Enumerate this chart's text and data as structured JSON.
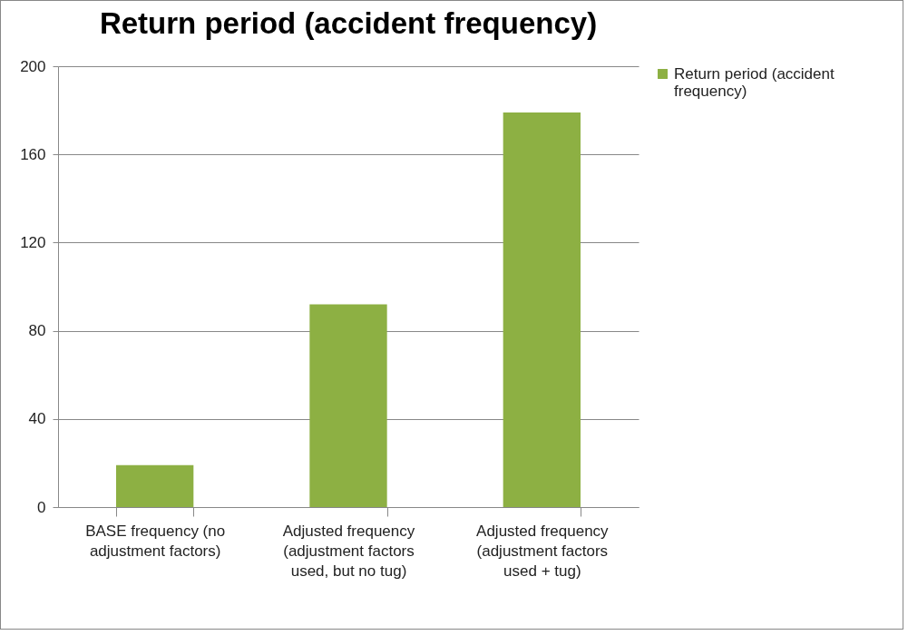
{
  "chart_data": {
    "type": "bar",
    "title": "Return period (accident frequency)",
    "categories": [
      "BASE frequency (no adjustment factors)",
      "Adjusted frequency (adjustment factors used, but no tug)",
      "Adjusted frequency (adjustment factors used + tug)"
    ],
    "series": [
      {
        "name": "Return period (accident frequency)",
        "color": "#8db043",
        "values": [
          19,
          92,
          179
        ]
      }
    ],
    "ylim": [
      0,
      200
    ],
    "yticks": [
      0,
      40,
      80,
      120,
      160,
      200
    ],
    "grid": "y",
    "legend": "right"
  }
}
